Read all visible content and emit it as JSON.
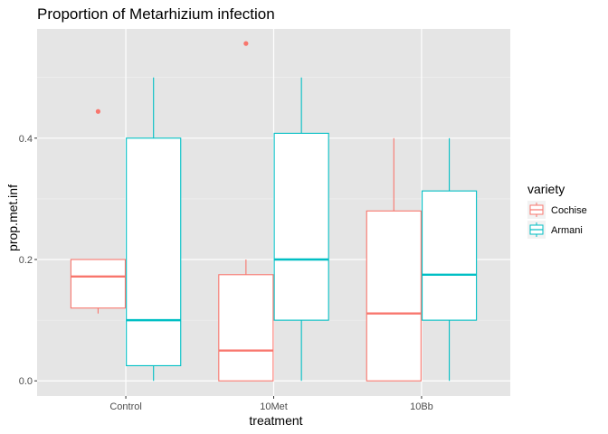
{
  "chart_data": {
    "type": "boxplot",
    "title": "Proportion of Metarhizium infection",
    "xlabel": "treatment",
    "ylabel": "prop.met.inf",
    "categories": [
      "Control",
      "10Met",
      "10Bb"
    ],
    "ylim": [
      -0.025,
      0.58
    ],
    "yticks": [
      0.0,
      0.2,
      0.4
    ],
    "ytick_labels": [
      "0.0",
      "0.2",
      "0.4"
    ],
    "grid": true,
    "background": "#e5e5e5",
    "legend": {
      "title": "variety",
      "position": "right"
    },
    "series": [
      {
        "name": "Cochise",
        "color": "#f8766d",
        "boxes": [
          {
            "category": "Control",
            "whisker_low": 0.111,
            "q1": 0.12,
            "median": 0.172,
            "q3": 0.2,
            "whisker_high": 0.2,
            "outliers": [
              0.444
            ]
          },
          {
            "category": "10Met",
            "whisker_low": 0.0,
            "q1": 0.0,
            "median": 0.05,
            "q3": 0.175,
            "whisker_high": 0.2,
            "outliers": [
              0.556
            ]
          },
          {
            "category": "10Bb",
            "whisker_low": 0.0,
            "q1": 0.0,
            "median": 0.111,
            "q3": 0.28,
            "whisker_high": 0.4,
            "outliers": []
          }
        ]
      },
      {
        "name": "Armani",
        "color": "#00bfc4",
        "boxes": [
          {
            "category": "Control",
            "whisker_low": 0.0,
            "q1": 0.025,
            "median": 0.1,
            "q3": 0.4,
            "whisker_high": 0.5,
            "outliers": []
          },
          {
            "category": "10Met",
            "whisker_low": 0.0,
            "q1": 0.1,
            "median": 0.2,
            "q3": 0.408,
            "whisker_high": 0.5,
            "outliers": []
          },
          {
            "category": "10Bb",
            "whisker_low": 0.0,
            "q1": 0.1,
            "median": 0.175,
            "q3": 0.313,
            "whisker_high": 0.4,
            "outliers": []
          }
        ]
      }
    ]
  }
}
